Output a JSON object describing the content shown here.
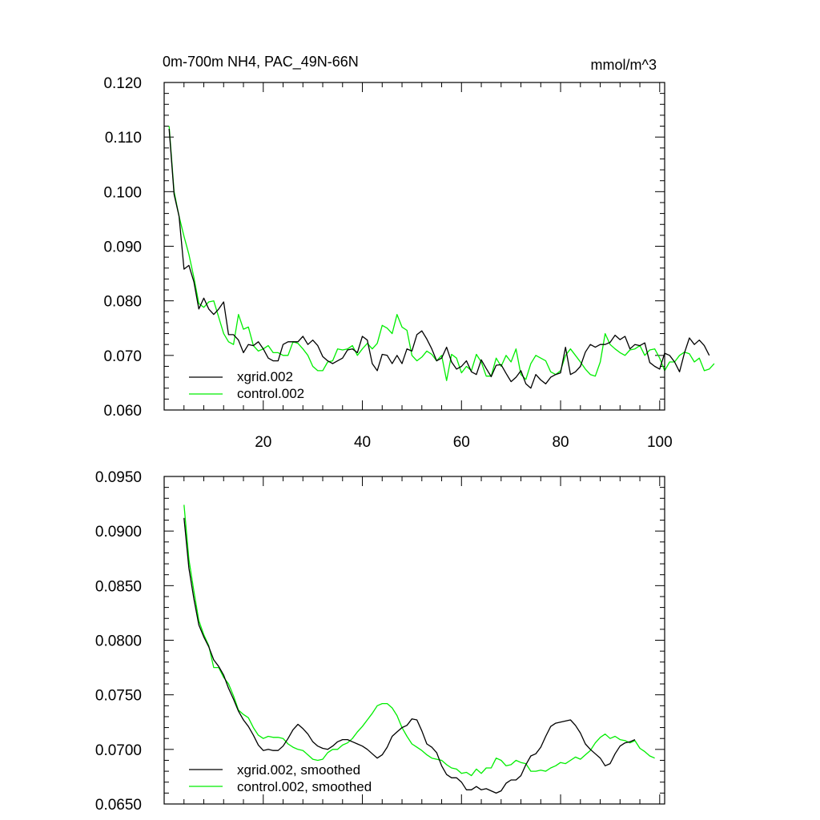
{
  "chart_data": [
    {
      "type": "line",
      "title_left": "0m-700m NH4, PAC_49N-66N",
      "title_right": "mmol/m^3",
      "xlim": [
        0,
        101
      ],
      "ylim": [
        0.06,
        0.12
      ],
      "xticks": [
        20,
        40,
        60,
        80,
        100
      ],
      "xtick_labels": [
        "20",
        "40",
        "60",
        "80",
        "100"
      ],
      "yticks": [
        0.06,
        0.07,
        0.08,
        0.09,
        0.1,
        0.11,
        0.12
      ],
      "ytick_labels": [
        "0.060",
        "0.070",
        "0.080",
        "0.090",
        "0.100",
        "0.110",
        "0.120"
      ],
      "legend_position": "bottom-left",
      "series": [
        {
          "name": "xgrid.002",
          "color": "#000000",
          "x_start": 1,
          "values": [
            0.1115,
            0.0995,
            0.0955,
            0.0858,
            0.0865,
            0.0835,
            0.0785,
            0.0805,
            0.0785,
            0.0775,
            0.0785,
            0.0798,
            0.0738,
            0.0738,
            0.0728,
            0.0705,
            0.072,
            0.0718,
            0.0725,
            0.0712,
            0.0695,
            0.069,
            0.069,
            0.072,
            0.0725,
            0.0725,
            0.0725,
            0.0735,
            0.072,
            0.0728,
            0.0718,
            0.0698,
            0.069,
            0.0685,
            0.069,
            0.0695,
            0.071,
            0.0712,
            0.0705,
            0.0735,
            0.0728,
            0.0685,
            0.0672,
            0.0702,
            0.07,
            0.0685,
            0.07,
            0.0685,
            0.0712,
            0.0708,
            0.0738,
            0.0745,
            0.073,
            0.0712,
            0.069,
            0.0695,
            0.0715,
            0.0688,
            0.0675,
            0.068,
            0.069,
            0.067,
            0.0665,
            0.0692,
            0.0676,
            0.0661,
            0.0682,
            0.0683,
            0.0667,
            0.0652,
            0.066,
            0.0672,
            0.0648,
            0.064,
            0.0665,
            0.0655,
            0.0648,
            0.066,
            0.0665,
            0.0668,
            0.0715,
            0.0665,
            0.067,
            0.068,
            0.0706,
            0.072,
            0.0715,
            0.072,
            0.072,
            0.0724,
            0.0737,
            0.0729,
            0.0735,
            0.0712,
            0.072,
            0.0718,
            0.0723,
            0.0687,
            0.068,
            0.0675,
            0.0704,
            0.07,
            0.0688,
            0.067,
            0.0705,
            0.0732,
            0.072,
            0.0728,
            0.0718,
            0.07
          ],
          "note": "values aligned so that x = x_start + index"
        },
        {
          "name": "control.002",
          "color": "#00ee00",
          "x_start": 1,
          "values": [
            0.112,
            0.1,
            0.0955,
            0.0918,
            0.0885,
            0.0843,
            0.0795,
            0.0788,
            0.0798,
            0.08,
            0.077,
            0.074,
            0.0725,
            0.072,
            0.0775,
            0.0748,
            0.0752,
            0.0718,
            0.0708,
            0.0712,
            0.0718,
            0.0705,
            0.0705,
            0.07,
            0.07,
            0.0725,
            0.0722,
            0.0712,
            0.07,
            0.068,
            0.0672,
            0.0672,
            0.0688,
            0.069,
            0.0712,
            0.071,
            0.0712,
            0.0718,
            0.07,
            0.0712,
            0.0722,
            0.0712,
            0.0722,
            0.0755,
            0.075,
            0.074,
            0.0775,
            0.0752,
            0.0746,
            0.07,
            0.069,
            0.0697,
            0.0708,
            0.0702,
            0.069,
            0.07,
            0.0654,
            0.0702,
            0.0695,
            0.0668,
            0.068,
            0.0672,
            0.0702,
            0.0688,
            0.0662,
            0.0662,
            0.0695,
            0.068,
            0.07,
            0.0688,
            0.0712,
            0.0665,
            0.0656,
            0.0685,
            0.07,
            0.0695,
            0.069,
            0.067,
            0.0665,
            0.0672,
            0.07,
            0.0712,
            0.07,
            0.0688,
            0.0675,
            0.0665,
            0.0662,
            0.0688,
            0.074,
            0.072,
            0.0712,
            0.0705,
            0.07,
            0.071,
            0.0712,
            0.0718,
            0.07,
            0.071,
            0.0712,
            0.0695,
            0.0672,
            0.0688,
            0.0688,
            0.07,
            0.0706,
            0.0703,
            0.0688,
            0.0695,
            0.0672,
            0.0675,
            0.0685
          ]
        }
      ]
    },
    {
      "type": "line",
      "xlim": [
        0,
        101
      ],
      "ylim": [
        0.065,
        0.095
      ],
      "xticks": [
        20,
        40,
        60,
        80,
        100
      ],
      "yticks": [
        0.065,
        0.07,
        0.075,
        0.08,
        0.085,
        0.09,
        0.095
      ],
      "ytick_labels": [
        "0.0650",
        "0.0700",
        "0.0750",
        "0.0800",
        "0.0850",
        "0.0900",
        "0.0950"
      ],
      "legend_position": "bottom-left",
      "series": [
        {
          "name": "xgrid.002, smoothed",
          "color": "#000000",
          "x_start": 4,
          "values": [
            0.0912,
            0.0866,
            0.0838,
            0.0814,
            0.0803,
            0.0794,
            0.0782,
            0.0776,
            0.0768,
            0.0756,
            0.0746,
            0.0735,
            0.0727,
            0.0721,
            0.0713,
            0.0704,
            0.0699,
            0.07,
            0.0699,
            0.0699,
            0.0703,
            0.071,
            0.0718,
            0.0723,
            0.0719,
            0.0714,
            0.0707,
            0.0703,
            0.0701,
            0.07,
            0.0703,
            0.0707,
            0.0709,
            0.0709,
            0.0707,
            0.0705,
            0.0703,
            0.07,
            0.0696,
            0.0692,
            0.0695,
            0.0702,
            0.0712,
            0.0716,
            0.072,
            0.0722,
            0.0728,
            0.0727,
            0.0717,
            0.0705,
            0.0702,
            0.0697,
            0.0685,
            0.0677,
            0.0674,
            0.0674,
            0.067,
            0.0663,
            0.0663,
            0.0666,
            0.0663,
            0.0664,
            0.0662,
            0.066,
            0.0662,
            0.0669,
            0.0672,
            0.0672,
            0.0676,
            0.0686,
            0.0694,
            0.0696,
            0.0702,
            0.0712,
            0.0721,
            0.0724,
            0.0725,
            0.0726,
            0.0727,
            0.0722,
            0.0715,
            0.0705,
            0.07,
            0.0696,
            0.0692,
            0.0685,
            0.0687,
            0.0696,
            0.0703,
            0.0706,
            0.0707,
            0.0709
          ]
        },
        {
          "name": "control.002, smoothed",
          "color": "#00ee00",
          "x_start": 4,
          "values": [
            0.0924,
            0.0874,
            0.0845,
            0.0818,
            0.0805,
            0.0795,
            0.0775,
            0.0775,
            0.0766,
            0.076,
            0.0749,
            0.0736,
            0.0732,
            0.0729,
            0.072,
            0.0713,
            0.071,
            0.0712,
            0.0711,
            0.0711,
            0.071,
            0.0705,
            0.0702,
            0.07,
            0.0699,
            0.0695,
            0.0691,
            0.069,
            0.0691,
            0.0697,
            0.07,
            0.07,
            0.0704,
            0.0706,
            0.071,
            0.0716,
            0.0721,
            0.0727,
            0.0733,
            0.074,
            0.0742,
            0.0742,
            0.0738,
            0.0731,
            0.072,
            0.0712,
            0.0705,
            0.0702,
            0.0699,
            0.0695,
            0.0692,
            0.0691,
            0.069,
            0.0686,
            0.0683,
            0.0682,
            0.0678,
            0.0679,
            0.0676,
            0.0682,
            0.0678,
            0.0683,
            0.0683,
            0.0692,
            0.069,
            0.0685,
            0.0686,
            0.069,
            0.0688,
            0.0687,
            0.068,
            0.068,
            0.0681,
            0.068,
            0.0683,
            0.0685,
            0.0688,
            0.0687,
            0.069,
            0.0693,
            0.0691,
            0.0695,
            0.0699,
            0.0706,
            0.0711,
            0.0714,
            0.071,
            0.0712,
            0.0709,
            0.0708,
            0.0706,
            0.0708,
            0.0701,
            0.0698,
            0.0694,
            0.0692
          ]
        }
      ]
    }
  ]
}
